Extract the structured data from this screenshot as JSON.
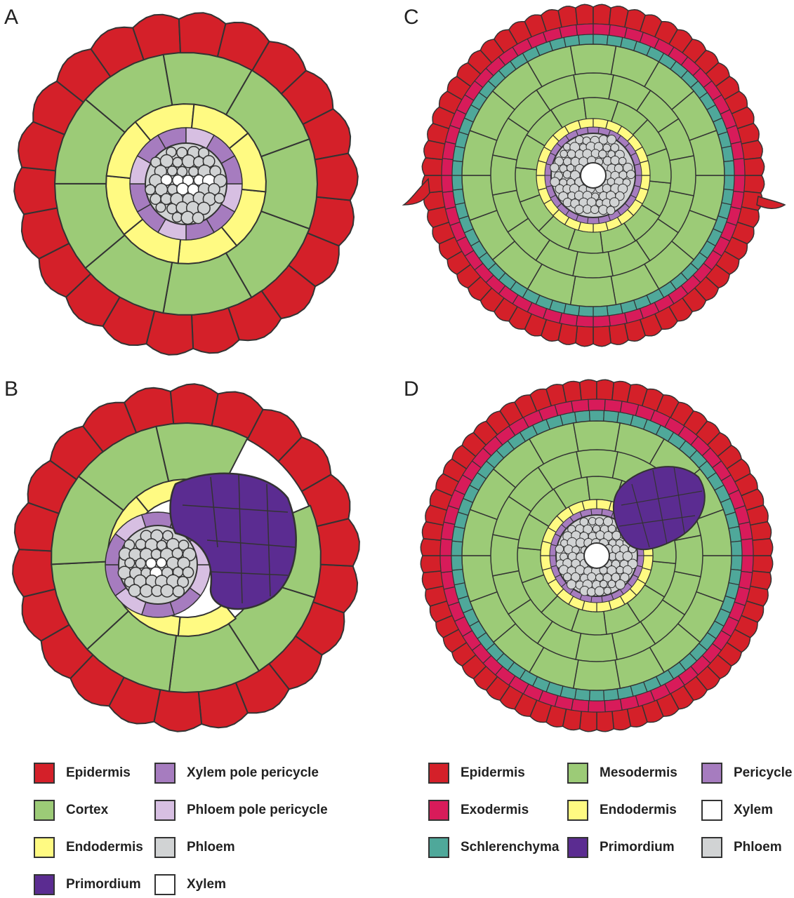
{
  "panels": {
    "a": {
      "letter": "A"
    },
    "b": {
      "letter": "B"
    },
    "c": {
      "letter": "C"
    },
    "d": {
      "letter": "D"
    }
  },
  "colors": {
    "epidermis": "#d42029",
    "exodermis": "#d81b5a",
    "sclerenchyma": "#4fa89a",
    "cortex": "#9ccb77",
    "mesodermis": "#9ccb77",
    "endodermis": "#fffa82",
    "xylem_pole_pericycle": "#a67cbf",
    "phloem_pole_pericycle": "#d7bfe2",
    "pericycle": "#a67cbf",
    "phloem": "#d1d3d4",
    "xylem": "#ffffff",
    "primordium": "#5b2c91",
    "outline": "#333333"
  },
  "legend_left": [
    {
      "label": "Epidermis",
      "color_key": "epidermis"
    },
    {
      "label": "Cortex",
      "color_key": "cortex"
    },
    {
      "label": "Endodermis",
      "color_key": "endodermis"
    },
    {
      "label": "Primordium",
      "color_key": "primordium"
    },
    {
      "label": "Xylem pole pericycle",
      "color_key": "xylem_pole_pericycle"
    },
    {
      "label": "Phloem pole pericycle",
      "color_key": "phloem_pole_pericycle"
    },
    {
      "label": "Phloem",
      "color_key": "phloem"
    },
    {
      "label": "Xylem",
      "color_key": "xylem"
    }
  ],
  "legend_right": [
    {
      "label": "Epidermis",
      "color_key": "epidermis"
    },
    {
      "label": "Exodermis",
      "color_key": "exodermis"
    },
    {
      "label": "Schlerenchyma",
      "color_key": "sclerenchyma"
    },
    {
      "label": "Mesodermis",
      "color_key": "mesodermis"
    },
    {
      "label": "Endodermis",
      "color_key": "endodermis"
    },
    {
      "label": "Primordium",
      "color_key": "primordium"
    },
    {
      "label": "Pericycle",
      "color_key": "pericycle"
    },
    {
      "label": "Xylem",
      "color_key": "xylem"
    },
    {
      "label": "Phloem",
      "color_key": "phloem"
    }
  ]
}
